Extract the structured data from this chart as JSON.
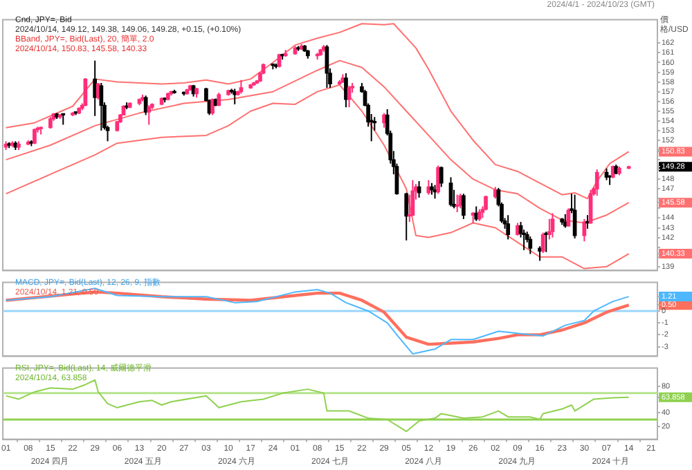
{
  "chart_data": [
    {
      "type": "candlestick",
      "title": "Cnd, JPY=, Bid",
      "subtitle": "2024/10/14, 149.12, 149.38, 149.06, 149.28, +0.15, (+0.10%)",
      "ylabel": "價格/USD",
      "annotations": [
        "BBand, JPY=, Bid(Last), 20, 簡單, 2.0",
        "2024/10/14, 150.83, 145.58, 140.33",
        "2024/4/1 - 2024/10/23 (GMT)"
      ],
      "xlim": [
        "2024-03-31",
        "2024-10-23"
      ],
      "ylim": [
        138.6,
        164.4
      ],
      "yticks": [
        139,
        {
          "value": 140,
          "label": null
        },
        {
          "value": 140.33,
          "label": "140.33"
        },
        {
          "value": 141,
          "label": null
        },
        142,
        143,
        144,
        {
          "value": 145,
          "label": null
        },
        {
          "value": 145.58,
          "label": "145.58"
        },
        {
          "value": 146,
          "label": null
        },
        147,
        148,
        {
          "value": 149,
          "label": null
        },
        {
          "value": 149.28,
          "label": "149.28"
        },
        {
          "value": 150,
          "label": null
        },
        {
          "value": 150.83,
          "label": "150.83"
        },
        {
          "value": 151,
          "label": null
        },
        152,
        153,
        154,
        155,
        156,
        157,
        158,
        159,
        160,
        161,
        162
      ],
      "tick_labels": "y",
      "series": [
        {
          "x": [
            "2024-04-01",
            "2024-04-02",
            "2024-04-03",
            "2024-04-04",
            "2024-04-05",
            "2024-04-08",
            "2024-04-09",
            "2024-04-10",
            "2024-04-11",
            "2024-04-12",
            "2024-04-15",
            "2024-04-16",
            "2024-04-17",
            "2024-04-18",
            "2024-04-19",
            "2024-04-22",
            "2024-04-23",
            "2024-04-24",
            "2024-04-25",
            "2024-04-26",
            "2024-04-29",
            "2024-04-30",
            "2024-05-01",
            "2024-05-02",
            "2024-05-03",
            "2024-05-06",
            "2024-05-07",
            "2024-05-08",
            "2024-05-09",
            "2024-05-10",
            "2024-05-13",
            "2024-05-14",
            "2024-05-15",
            "2024-05-16",
            "2024-05-17",
            "2024-05-20",
            "2024-05-21",
            "2024-05-22",
            "2024-05-23",
            "2024-05-24",
            "2024-05-27",
            "2024-05-28",
            "2024-05-29",
            "2024-05-30",
            "2024-05-31",
            "2024-06-03",
            "2024-06-04",
            "2024-06-05",
            "2024-06-06",
            "2024-06-07",
            "2024-06-10",
            "2024-06-11",
            "2024-06-12",
            "2024-06-13",
            "2024-06-14",
            "2024-06-17",
            "2024-06-18",
            "2024-06-19",
            "2024-06-20",
            "2024-06-21",
            "2024-06-24",
            "2024-06-25",
            "2024-06-26",
            "2024-06-27",
            "2024-06-28",
            "2024-07-01",
            "2024-07-02",
            "2024-07-03",
            "2024-07-04",
            "2024-07-05",
            "2024-07-08",
            "2024-07-09",
            "2024-07-10",
            "2024-07-11",
            "2024-07-12",
            "2024-07-15",
            "2024-07-16",
            "2024-07-17",
            "2024-07-18",
            "2024-07-19",
            "2024-07-22",
            "2024-07-23",
            "2024-07-24",
            "2024-07-25",
            "2024-07-26",
            "2024-07-29",
            "2024-07-30",
            "2024-07-31",
            "2024-08-01",
            "2024-08-02",
            "2024-08-05",
            "2024-08-06",
            "2024-08-07",
            "2024-08-08",
            "2024-08-09",
            "2024-08-12",
            "2024-08-13",
            "2024-08-14",
            "2024-08-15",
            "2024-08-16",
            "2024-08-19",
            "2024-08-20",
            "2024-08-21",
            "2024-08-22",
            "2024-08-23",
            "2024-08-26",
            "2024-08-27",
            "2024-08-28",
            "2024-08-29",
            "2024-08-30",
            "2024-09-02",
            "2024-09-03",
            "2024-09-04",
            "2024-09-05",
            "2024-09-06",
            "2024-09-09",
            "2024-09-10",
            "2024-09-11",
            "2024-09-12",
            "2024-09-13",
            "2024-09-16",
            "2024-09-17",
            "2024-09-18",
            "2024-09-19",
            "2024-09-20",
            "2024-09-23",
            "2024-09-24",
            "2024-09-25",
            "2024-09-26",
            "2024-09-27",
            "2024-09-30",
            "2024-10-01",
            "2024-10-02",
            "2024-10-03",
            "2024-10-04",
            "2024-10-07",
            "2024-10-08",
            "2024-10-09",
            "2024-10-10",
            "2024-10-11",
            "2024-10-14"
          ],
          "ohlc": [
            [
              151.3,
              151.9,
              151.0,
              151.6
            ],
            [
              151.6,
              151.8,
              151.2,
              151.5
            ],
            [
              151.5,
              151.9,
              151.3,
              151.7
            ],
            [
              151.7,
              151.9,
              151.0,
              151.3
            ],
            [
              151.3,
              151.9,
              151.0,
              151.6
            ],
            [
              151.6,
              152.0,
              151.5,
              151.8
            ],
            [
              151.8,
              152.0,
              151.4,
              151.7
            ],
            [
              151.7,
              153.2,
              151.6,
              153.1
            ],
            [
              153.1,
              153.4,
              152.8,
              153.2
            ],
            [
              153.2,
              153.4,
              152.6,
              153.3
            ],
            [
              153.3,
              154.4,
              153.2,
              154.2
            ],
            [
              154.2,
              154.8,
              154.0,
              154.7
            ],
            [
              154.7,
              154.8,
              154.2,
              154.4
            ],
            [
              154.4,
              154.7,
              154.2,
              154.6
            ],
            [
              154.6,
              154.7,
              153.6,
              154.6
            ],
            [
              154.6,
              154.9,
              154.5,
              154.8
            ],
            [
              154.8,
              154.9,
              154.6,
              154.8
            ],
            [
              154.8,
              155.4,
              154.7,
              155.3
            ],
            [
              155.3,
              155.8,
              155.1,
              155.6
            ],
            [
              155.6,
              158.4,
              155.5,
              158.3
            ],
            [
              158.3,
              160.2,
              154.5,
              156.4
            ],
            [
              156.4,
              157.9,
              156.2,
              157.8
            ],
            [
              157.6,
              157.9,
              153.0,
              155.6
            ],
            [
              155.6,
              155.9,
              153.1,
              153.3
            ],
            [
              153.3,
              153.5,
              151.9,
              153.0
            ],
            [
              153.0,
              154.0,
              152.9,
              153.9
            ],
            [
              153.9,
              154.7,
              153.8,
              154.6
            ],
            [
              154.6,
              155.6,
              154.6,
              155.5
            ],
            [
              155.5,
              155.9,
              155.2,
              155.4
            ],
            [
              155.4,
              155.9,
              155.3,
              155.8
            ],
            [
              155.8,
              156.3,
              155.6,
              156.2
            ],
            [
              156.2,
              156.7,
              156.0,
              156.4
            ],
            [
              156.4,
              156.6,
              154.6,
              154.9
            ],
            [
              154.9,
              155.6,
              153.6,
              155.4
            ],
            [
              155.4,
              155.8,
              155.2,
              155.7
            ],
            [
              155.7,
              156.4,
              155.6,
              156.3
            ],
            [
              156.3,
              156.4,
              155.9,
              156.2
            ],
            [
              156.2,
              156.9,
              156.1,
              156.8
            ],
            [
              156.8,
              157.1,
              156.6,
              157.0
            ],
            [
              157.0,
              157.2,
              156.8,
              156.9
            ],
            [
              156.9,
              157.0,
              156.6,
              156.8
            ],
            [
              156.8,
              157.3,
              156.7,
              157.2
            ],
            [
              157.2,
              157.7,
              157.1,
              157.6
            ],
            [
              157.6,
              157.7,
              156.5,
              156.8
            ],
            [
              156.8,
              157.4,
              156.4,
              157.3
            ],
            [
              157.3,
              157.4,
              156.0,
              156.1
            ],
            [
              156.1,
              156.2,
              154.6,
              154.8
            ],
            [
              154.8,
              156.3,
              154.6,
              156.2
            ],
            [
              156.2,
              156.3,
              155.5,
              155.6
            ],
            [
              155.6,
              156.9,
              155.5,
              156.7
            ],
            [
              156.7,
              157.2,
              156.6,
              157.1
            ],
            [
              157.1,
              157.3,
              156.8,
              157.0
            ],
            [
              157.0,
              157.3,
              155.7,
              156.7
            ],
            [
              156.7,
              157.1,
              156.6,
              157.0
            ],
            [
              157.0,
              158.2,
              156.8,
              157.4
            ],
            [
              157.4,
              157.8,
              157.3,
              157.7
            ],
            [
              157.7,
              158.0,
              157.6,
              157.9
            ],
            [
              157.9,
              158.2,
              157.8,
              158.1
            ],
            [
              158.1,
              159.0,
              158.0,
              158.9
            ],
            [
              158.9,
              159.9,
              158.8,
              159.8
            ],
            [
              159.8,
              159.9,
              159.3,
              159.7
            ],
            [
              159.7,
              159.9,
              159.4,
              159.6
            ],
            [
              159.6,
              160.9,
              159.5,
              160.8
            ],
            [
              160.8,
              160.9,
              160.3,
              160.7
            ],
            [
              160.7,
              161.3,
              160.6,
              160.9
            ],
            [
              160.9,
              161.7,
              160.8,
              161.5
            ],
            [
              161.5,
              161.7,
              161.2,
              161.4
            ],
            [
              161.4,
              161.9,
              161.3,
              161.7
            ],
            [
              161.7,
              161.8,
              161.1,
              161.2
            ],
            [
              161.2,
              161.3,
              160.4,
              160.7
            ],
            [
              160.7,
              161.0,
              160.3,
              160.8
            ],
            [
              160.8,
              161.4,
              160.7,
              161.3
            ],
            [
              161.3,
              161.8,
              161.1,
              161.6
            ],
            [
              161.6,
              161.8,
              157.4,
              158.9
            ],
            [
              158.9,
              159.4,
              157.4,
              157.8
            ],
            [
              157.8,
              158.2,
              157.7,
              158.0
            ],
            [
              158.0,
              158.8,
              157.9,
              158.4
            ],
            [
              158.4,
              158.9,
              155.4,
              156.2
            ],
            [
              156.2,
              157.6,
              155.4,
              157.4
            ],
            [
              157.4,
              157.9,
              156.9,
              157.5
            ],
            [
              157.5,
              157.9,
              156.9,
              157.0
            ],
            [
              157.0,
              157.2,
              155.5,
              155.6
            ],
            [
              155.6,
              155.8,
              153.4,
              153.9
            ],
            [
              153.9,
              154.7,
              151.9,
              153.9
            ],
            [
              153.9,
              154.4,
              153.0,
              153.8
            ],
            [
              153.8,
              154.8,
              153.3,
              154.6
            ],
            [
              154.6,
              155.2,
              152.5,
              152.7
            ],
            [
              152.7,
              153.0,
              149.6,
              150.0
            ],
            [
              150.0,
              150.9,
              148.5,
              149.3
            ],
            [
              149.3,
              149.6,
              146.4,
              146.5
            ],
            [
              146.5,
              146.6,
              141.7,
              144.2
            ],
            [
              144.2,
              146.4,
              143.6,
              144.3
            ],
            [
              144.3,
              147.9,
              144.2,
              146.8
            ],
            [
              146.8,
              147.5,
              145.9,
              147.2
            ],
            [
              147.2,
              147.8,
              146.1,
              146.6
            ],
            [
              146.6,
              147.9,
              146.4,
              147.2
            ],
            [
              147.2,
              147.6,
              146.4,
              146.9
            ],
            [
              146.9,
              147.4,
              146.0,
              146.7
            ],
            [
              146.7,
              149.4,
              146.5,
              149.2
            ],
            [
              149.2,
              149.3,
              147.2,
              147.6
            ],
            [
              147.6,
              148.2,
              145.2,
              145.4
            ],
            [
              145.4,
              146.9,
              145.0,
              145.2
            ],
            [
              145.2,
              146.4,
              144.6,
              145.3
            ],
            [
              145.3,
              146.5,
              145.0,
              146.3
            ],
            [
              146.3,
              146.5,
              143.9,
              144.3
            ],
            [
              144.3,
              144.6,
              143.5,
              144.5
            ],
            [
              144.5,
              145.2,
              143.7,
              143.9
            ],
            [
              143.9,
              144.9,
              143.7,
              144.6
            ],
            [
              144.6,
              145.2,
              144.0,
              144.9
            ],
            [
              144.9,
              146.3,
              144.8,
              146.2
            ],
            [
              146.2,
              147.2,
              146.0,
              146.9
            ],
            [
              146.9,
              147.1,
              145.2,
              145.4
            ],
            [
              145.4,
              145.6,
              143.5,
              143.7
            ],
            [
              143.7,
              144.0,
              142.9,
              143.4
            ],
            [
              143.4,
              144.3,
              141.8,
              142.3
            ],
            [
              142.3,
              143.5,
              142.2,
              143.2
            ],
            [
              143.2,
              143.6,
              142.0,
              142.4
            ],
            [
              142.4,
              142.8,
              140.7,
              142.3
            ],
            [
              142.3,
              142.6,
              141.5,
              141.8
            ],
            [
              141.8,
              142.1,
              140.3,
              140.9
            ],
            [
              140.9,
              141.1,
              139.6,
              140.6
            ],
            [
              140.6,
              142.5,
              140.4,
              142.3
            ],
            [
              142.3,
              142.6,
              140.5,
              142.3
            ],
            [
              142.3,
              143.9,
              141.8,
              142.6
            ],
            [
              142.6,
              144.5,
              142.0,
              143.9
            ],
            [
              143.9,
              144.0,
              143.3,
              143.6
            ],
            [
              143.6,
              144.4,
              143.0,
              143.2
            ],
            [
              143.2,
              145.0,
              143.1,
              144.8
            ],
            [
              144.8,
              146.5,
              144.5,
              144.8
            ],
            [
              144.8,
              146.4,
              141.9,
              142.2
            ],
            [
              142.2,
              143.9,
              141.6,
              143.6
            ],
            [
              143.6,
              144.3,
              142.9,
              143.5
            ],
            [
              143.5,
              146.9,
              143.4,
              146.5
            ],
            [
              146.5,
              147.2,
              146.3,
              147.0
            ],
            [
              147.0,
              149.0,
              146.3,
              148.7
            ],
            [
              148.7,
              149.1,
              147.9,
              148.2
            ],
            [
              148.2,
              148.4,
              147.4,
              148.2
            ],
            [
              148.2,
              149.4,
              148.1,
              149.3
            ],
            [
              149.3,
              149.5,
              148.5,
              148.6
            ],
            [
              148.6,
              149.3,
              148.4,
              149.13
            ],
            [
              149.12,
              149.38,
              149.06,
              149.28
            ]
          ],
          "colors": [
            "#ff2d7a",
            "#000000",
            "#ff2d7a",
            "#000000",
            "#ff2d7a",
            "#ff2d7a",
            "#000000",
            "#ff2d7a",
            "#ff2d7a",
            "#ff2d7a",
            "#ff2d7a",
            "#ff2d7a",
            "#000000",
            "#ff2d7a",
            "#000000",
            "#ff2d7a",
            "#000000",
            "#ff2d7a",
            "#ff2d7a",
            "#ff2d7a",
            "#000000",
            "#ff2d7a",
            "#000000",
            "#000000",
            "#000000",
            "#ff2d7a",
            "#ff2d7a",
            "#ff2d7a",
            "#000000",
            "#ff2d7a",
            "#ff2d7a",
            "#ff2d7a",
            "#000000",
            "#ff2d7a",
            "#ff2d7a",
            "#ff2d7a",
            "#000000",
            "#ff2d7a",
            "#ff2d7a",
            "#000000",
            "#000000",
            "#ff2d7a",
            "#ff2d7a",
            "#000000",
            "#ff2d7a",
            "#000000",
            "#000000",
            "#ff2d7a",
            "#000000",
            "#ff2d7a",
            "#ff2d7a",
            "#000000",
            "#000000",
            "#ff2d7a",
            "#ff2d7a",
            "#ff2d7a",
            "#ff2d7a",
            "#ff2d7a",
            "#ff2d7a",
            "#ff2d7a",
            "#000000",
            "#000000",
            "#ff2d7a",
            "#000000",
            "#ff2d7a",
            "#ff2d7a",
            "#000000",
            "#ff2d7a",
            "#000000",
            "#000000",
            "#ff2d7a",
            "#ff2d7a",
            "#ff2d7a",
            "#000000",
            "#000000",
            "#ff2d7a",
            "#ff2d7a",
            "#000000",
            "#ff2d7a",
            "#ff2d7a",
            "#000000",
            "#000000",
            "#000000",
            "#000000",
            "#000000",
            "#ff2d7a",
            "#000000",
            "#000000",
            "#000000",
            "#000000",
            "#000000",
            "#ff2d7a",
            "#ff2d7a",
            "#ff2d7a",
            "#000000",
            "#ff2d7a",
            "#000000",
            "#000000",
            "#ff2d7a",
            "#000000",
            "#000000",
            "#000000",
            "#ff2d7a",
            "#ff2d7a",
            "#000000",
            "#ff2d7a",
            "#000000",
            "#ff2d7a",
            "#ff2d7a",
            "#ff2d7a",
            "#ff2d7a",
            "#000000",
            "#000000",
            "#000000",
            "#000000",
            "#ff2d7a",
            "#000000",
            "#000000",
            "#000000",
            "#000000",
            "#000000",
            "#ff2d7a",
            "#000000",
            "#ff2d7a",
            "#ff2d7a",
            "#000000",
            "#000000",
            "#ff2d7a",
            "#000000",
            "#000000",
            "#ff2d7a",
            "#000000",
            "#ff2d7a",
            "#ff2d7a",
            "#ff2d7a",
            "#000000",
            "#000000",
            "#ff2d7a",
            "#000000",
            "#ff2d7a",
            "#ff2d7a"
          ]
        },
        {
          "type": "line",
          "color": "#ff7070",
          "x": [
            "2024-04-01",
            "2024-04-10",
            "2024-04-22",
            "2024-04-29",
            "2024-05-06",
            "2024-05-20",
            "2024-05-27",
            "2024-06-03",
            "2024-06-10",
            "2024-06-17",
            "2024-06-24",
            "2024-07-01",
            "2024-07-08",
            "2024-07-15",
            "2024-07-22",
            "2024-07-29",
            "2024-08-01",
            "2024-08-08",
            "2024-08-12",
            "2024-08-19",
            "2024-08-26",
            "2024-09-02",
            "2024-09-09",
            "2024-09-16",
            "2024-09-23",
            "2024-09-27",
            "2024-10-01",
            "2024-10-04",
            "2024-10-08",
            "2024-10-14"
          ],
          "values": [
            153.3,
            153.8,
            155.5,
            158.3,
            158.0,
            157.8,
            157.9,
            158.2,
            157.8,
            158.3,
            160.0,
            161.8,
            162.5,
            163.1,
            164.0,
            163.9,
            164.0,
            161.5,
            159.3,
            155.0,
            152.0,
            149.5,
            148.8,
            147.6,
            146.4,
            146.6,
            146.0,
            147.8,
            149.6,
            150.83
          ]
        },
        {
          "type": "line",
          "color": "#ff7070",
          "x": [
            "2024-04-01",
            "2024-04-15",
            "2024-04-29",
            "2024-05-13",
            "2024-05-27",
            "2024-06-10",
            "2024-06-24",
            "2024-07-08",
            "2024-07-15",
            "2024-07-22",
            "2024-07-29",
            "2024-08-05",
            "2024-08-12",
            "2024-08-19",
            "2024-08-26",
            "2024-09-02",
            "2024-09-09",
            "2024-09-16",
            "2024-09-23",
            "2024-09-30",
            "2024-10-07",
            "2024-10-14"
          ],
          "values": [
            150.0,
            151.5,
            153.5,
            154.8,
            155.8,
            156.2,
            157.0,
            159.2,
            160.2,
            159.5,
            157.5,
            155.0,
            152.5,
            150.0,
            148.0,
            146.9,
            146.5,
            145.0,
            143.8,
            143.5,
            144.3,
            145.58
          ]
        },
        {
          "type": "line",
          "color": "#ff7070",
          "x": [
            "2024-04-01",
            "2024-04-15",
            "2024-04-29",
            "2024-05-06",
            "2024-05-20",
            "2024-06-03",
            "2024-06-10",
            "2024-06-17",
            "2024-06-24",
            "2024-07-01",
            "2024-07-08",
            "2024-07-15",
            "2024-07-22",
            "2024-07-29",
            "2024-08-05",
            "2024-08-08",
            "2024-08-12",
            "2024-08-19",
            "2024-08-26",
            "2024-09-02",
            "2024-09-09",
            "2024-09-16",
            "2024-09-23",
            "2024-09-30",
            "2024-10-07",
            "2024-10-14"
          ],
          "values": [
            146.5,
            148.5,
            150.5,
            151.7,
            152.3,
            152.5,
            153.5,
            155.0,
            155.8,
            155.7,
            157.0,
            157.7,
            155.0,
            151.5,
            147.0,
            142.2,
            142.0,
            142.5,
            143.5,
            143.0,
            141.5,
            140.0,
            140.0,
            138.8,
            139.0,
            140.33
          ]
        }
      ]
    },
    {
      "type": "line",
      "title": "MACD, JPY=, Bid(Last), 12, 26, 9, 指數",
      "subtitle": "2024/10/14, 1.21, 0.50",
      "xlim": [
        "2024-03-31",
        "2024-10-23"
      ],
      "ylim": [
        -3.8,
        2.4
      ],
      "yticks": [
        -3,
        -2,
        -1,
        0,
        {
          "value": 0.5,
          "label": "0.50"
        },
        {
          "value": 1.21,
          "label": "1.21"
        }
      ],
      "tick_labels": "y",
      "ref_lines": [
        {
          "axis": "y",
          "value": 0,
          "color": "#99d6ff"
        }
      ],
      "series": [
        {
          "color": "#4db8ff",
          "x": [
            "2024-04-01",
            "2024-04-15",
            "2024-04-29",
            "2024-05-06",
            "2024-05-20",
            "2024-06-03",
            "2024-06-12",
            "2024-06-19",
            "2024-07-01",
            "2024-07-08",
            "2024-07-12",
            "2024-07-17",
            "2024-07-24",
            "2024-07-30",
            "2024-08-02",
            "2024-08-07",
            "2024-08-14",
            "2024-08-19",
            "2024-08-26",
            "2024-09-03",
            "2024-09-10",
            "2024-09-17",
            "2024-09-24",
            "2024-09-30",
            "2024-10-03",
            "2024-10-09",
            "2024-10-14"
          ],
          "values": [
            0.9,
            1.2,
            1.9,
            1.3,
            1.2,
            1.2,
            0.7,
            0.8,
            1.6,
            1.8,
            1.5,
            0.7,
            0.0,
            -1.0,
            -2.0,
            -3.6,
            -3.2,
            -2.4,
            -2.4,
            -1.7,
            -1.9,
            -2.1,
            -1.2,
            -0.8,
            0.0,
            0.8,
            1.21
          ]
        },
        {
          "color": "#ff6f5e",
          "x": [
            "2024-04-01",
            "2024-04-29",
            "2024-05-06",
            "2024-05-20",
            "2024-06-03",
            "2024-06-17",
            "2024-07-01",
            "2024-07-08",
            "2024-07-15",
            "2024-07-22",
            "2024-07-29",
            "2024-08-05",
            "2024-08-12",
            "2024-08-19",
            "2024-08-26",
            "2024-09-03",
            "2024-09-09",
            "2024-09-16",
            "2024-09-23",
            "2024-09-30",
            "2024-10-07",
            "2024-10-14"
          ],
          "values": [
            0.9,
            1.6,
            1.5,
            1.2,
            1.0,
            0.9,
            1.3,
            1.5,
            1.5,
            0.9,
            -0.1,
            -2.2,
            -2.8,
            -2.7,
            -2.6,
            -2.3,
            -2.0,
            -2.0,
            -1.6,
            -1.0,
            -0.1,
            0.5
          ]
        }
      ]
    },
    {
      "type": "line",
      "title": "RSI, JPY=, Bid(Last), 14, 威爾德平滑",
      "subtitle": "2024/10/14, 63.858",
      "annotations": [
        "2024 四月",
        "2024 五月",
        "2024 六月",
        "2024 七月",
        "2024 八月",
        "2024 九月",
        "2024 十月"
      ],
      "xlim": [
        "2024-03-31",
        "2024-10-23"
      ],
      "ylim": [
        0,
        108
      ],
      "yticks": [
        20,
        40,
        {
          "value": 63.858,
          "label": "63.858"
        },
        80
      ],
      "xticks": [
        {
          "value": "2024-04-01",
          "label": "01"
        },
        {
          "value": "2024-04-08",
          "label": "08"
        },
        {
          "value": "2024-04-15",
          "label": "15"
        },
        {
          "value": "2024-04-22",
          "label": "22"
        },
        {
          "value": "2024-04-29",
          "label": "29"
        },
        {
          "value": "2024-05-06",
          "label": "06"
        },
        {
          "value": "2024-05-13",
          "label": "13"
        },
        {
          "value": "2024-05-20",
          "label": "20"
        },
        {
          "value": "2024-05-27",
          "label": "27"
        },
        {
          "value": "2024-06-03",
          "label": "03"
        },
        {
          "value": "2024-06-10",
          "label": "10"
        },
        {
          "value": "2024-06-17",
          "label": "17"
        },
        {
          "value": "2024-06-24",
          "label": "24"
        },
        {
          "value": "2024-07-01",
          "label": "01"
        },
        {
          "value": "2024-07-08",
          "label": "08"
        },
        {
          "value": "2024-07-15",
          "label": "15"
        },
        {
          "value": "2024-07-22",
          "label": "22"
        },
        {
          "value": "2024-07-29",
          "label": "29"
        },
        {
          "value": "2024-08-05",
          "label": "05"
        },
        {
          "value": "2024-08-12",
          "label": "12"
        },
        {
          "value": "2024-08-19",
          "label": "19"
        },
        {
          "value": "2024-08-26",
          "label": "26"
        },
        {
          "value": "2024-09-02",
          "label": "02"
        },
        {
          "value": "2024-09-09",
          "label": "09"
        },
        {
          "value": "2024-09-16",
          "label": "16"
        },
        {
          "value": "2024-09-23",
          "label": "23"
        },
        {
          "value": "2024-09-30",
          "label": "30"
        },
        {
          "value": "2024-10-07",
          "label": "07"
        },
        {
          "value": "2024-10-14",
          "label": "14"
        },
        {
          "value": "2024-10-21",
          "label": "21"
        }
      ],
      "ref_lines": [
        {
          "axis": "y",
          "value": 70,
          "color": "#b5e48c"
        },
        {
          "axis": "y",
          "value": 30,
          "color": "#8fd14f"
        }
      ],
      "series": [
        {
          "color": "#8fd14f",
          "x": [
            "2024-04-01",
            "2024-04-05",
            "2024-04-10",
            "2024-04-15",
            "2024-04-22",
            "2024-04-26",
            "2024-04-29",
            "2024-04-30",
            "2024-05-03",
            "2024-05-06",
            "2024-05-13",
            "2024-05-17",
            "2024-05-20",
            "2024-05-23",
            "2024-06-03",
            "2024-06-07",
            "2024-06-14",
            "2024-06-21",
            "2024-06-27",
            "2024-07-05",
            "2024-07-10",
            "2024-07-11",
            "2024-07-18",
            "2024-07-24",
            "2024-07-30",
            "2024-08-05",
            "2024-08-09",
            "2024-08-14",
            "2024-08-16",
            "2024-08-23",
            "2024-08-29",
            "2024-09-03",
            "2024-09-06",
            "2024-09-13",
            "2024-09-16",
            "2024-09-17",
            "2024-09-23",
            "2024-09-26",
            "2024-09-27",
            "2024-10-03",
            "2024-10-09",
            "2024-10-14"
          ],
          "values": [
            66,
            61,
            72,
            78,
            76,
            83,
            90,
            72,
            54,
            48,
            57,
            59,
            52,
            57,
            66,
            48,
            57,
            61,
            70,
            76,
            70,
            43,
            43,
            32,
            30,
            12,
            28,
            32,
            39,
            32,
            34,
            43,
            34,
            34,
            30,
            39,
            46,
            52,
            43,
            61,
            63,
            63.858
          ]
        }
      ]
    }
  ]
}
